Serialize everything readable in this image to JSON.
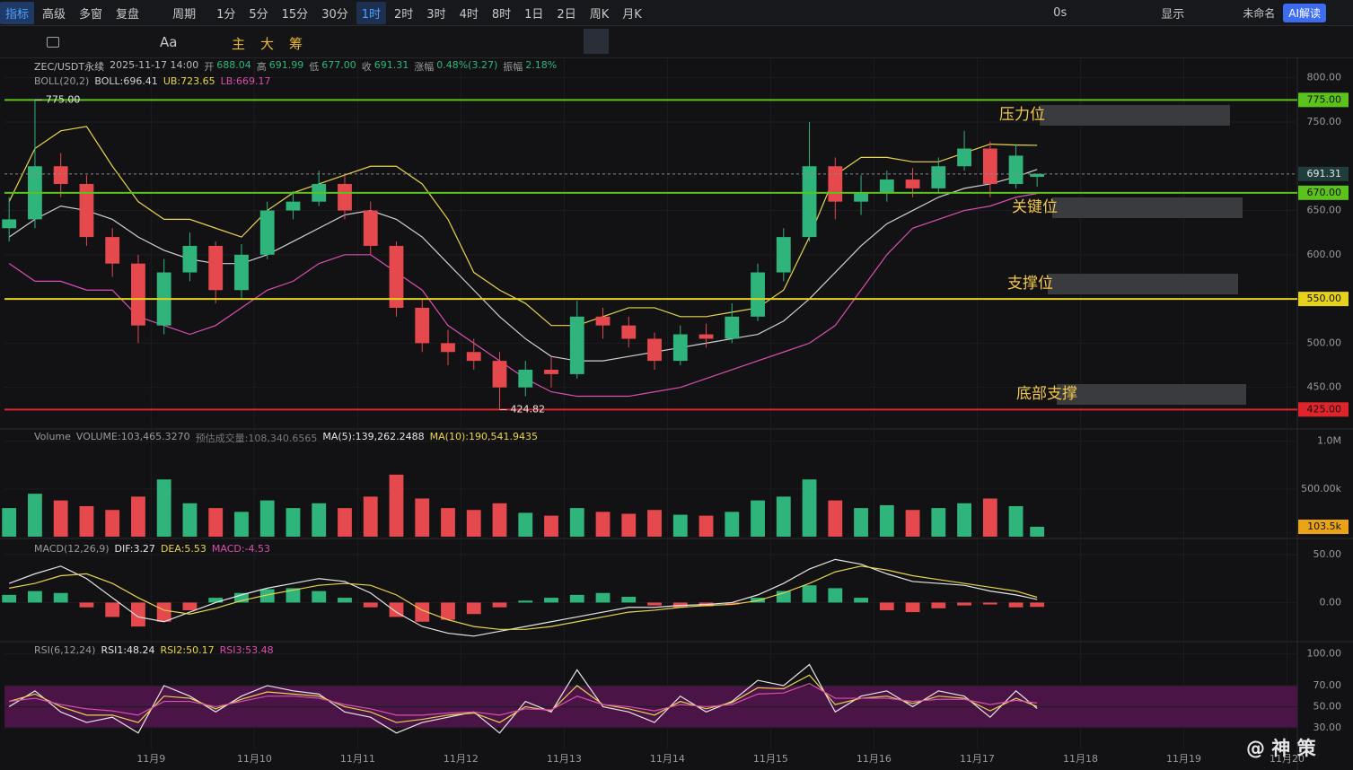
{
  "toolbar": {
    "items": [
      "指标",
      "高级",
      "多窗",
      "复盘",
      "周期",
      "1分",
      "5分",
      "15分",
      "30分",
      "1时",
      "2时",
      "3时",
      "4时",
      "8时",
      "1日",
      "2日",
      "周K",
      "月K"
    ],
    "right": [
      "0s",
      "显示",
      "未命名",
      "AI解读"
    ]
  },
  "drawing_tools": [
    "Aa",
    "主",
    "大",
    "筹"
  ],
  "watermark": "@ 神 策",
  "chart_data": [
    {
      "type": "candlestick",
      "title": "ZEC/USDT永续",
      "subtitle": "2025-11-17 14:00",
      "stats": [
        {
          "label": "开",
          "value": "688.04"
        },
        {
          "label": "高",
          "value": "691.99"
        },
        {
          "label": "低",
          "value": "677.00"
        },
        {
          "label": "收",
          "value": "691.31"
        },
        {
          "label": "涨幅",
          "value": "0.48%(3.27)"
        },
        {
          "label": "振幅",
          "value": "2.18%"
        }
      ],
      "legend": [
        {
          "text": "BOLL(20,2)",
          "color": "#9a9a9a"
        },
        {
          "text": "BOLL:696.41",
          "color": "#d0d0d0"
        },
        {
          "text": "UB:723.65",
          "color": "#e8d44d"
        },
        {
          "text": "LB:669.17",
          "color": "#d94fb0"
        }
      ],
      "x": [
        7.625,
        7.875,
        8.125,
        8.375,
        8.625,
        8.875,
        9.125,
        9.375,
        9.625,
        9.875,
        10.125,
        10.375,
        10.625,
        10.875,
        11.125,
        11.375,
        11.625,
        11.875,
        12.125,
        12.375,
        12.625,
        12.875,
        13.125,
        13.375,
        13.625,
        13.875,
        14.125,
        14.375,
        14.625,
        14.875,
        15.125,
        15.375,
        15.625,
        15.875,
        16.125,
        16.375,
        16.625,
        16.875,
        17.125,
        17.375,
        17.58
      ],
      "open": [
        630,
        640,
        700,
        680,
        620,
        590,
        520,
        580,
        610,
        560,
        600,
        650,
        660,
        680,
        650,
        610,
        540,
        500,
        490,
        480,
        450,
        470,
        465,
        530,
        520,
        505,
        480,
        510,
        505,
        530,
        580,
        620,
        700,
        660,
        670,
        685,
        675,
        700,
        720,
        680,
        688.04
      ],
      "high": [
        665,
        775,
        715,
        690,
        630,
        600,
        595,
        625,
        615,
        612,
        660,
        672,
        695,
        690,
        660,
        615,
        550,
        515,
        505,
        490,
        480,
        485,
        548,
        540,
        530,
        512,
        520,
        522,
        545,
        590,
        630,
        750,
        710,
        690,
        695,
        698,
        710,
        740,
        728,
        725,
        691.99
      ],
      "low": [
        615,
        630,
        665,
        610,
        575,
        500,
        510,
        570,
        545,
        550,
        595,
        640,
        655,
        640,
        600,
        530,
        490,
        475,
        470,
        424.82,
        440,
        450,
        460,
        505,
        495,
        470,
        475,
        495,
        500,
        525,
        570,
        615,
        640,
        645,
        660,
        665,
        670,
        695,
        665,
        675,
        677.0
      ],
      "close": [
        640,
        700,
        680,
        620,
        590,
        520,
        580,
        610,
        560,
        600,
        650,
        660,
        680,
        650,
        610,
        540,
        500,
        490,
        480,
        450,
        470,
        465,
        530,
        520,
        505,
        480,
        510,
        505,
        530,
        580,
        620,
        700,
        660,
        670,
        685,
        675,
        700,
        720,
        680,
        712,
        691.31
      ],
      "up_color": "#2fb47c",
      "down_color": "#e5484d",
      "bands": [
        {
          "name": "BOLL",
          "color": "#d0d0d0",
          "values": [
            620,
            640,
            655,
            650,
            640,
            620,
            605,
            595,
            590,
            590,
            600,
            615,
            630,
            645,
            650,
            640,
            620,
            590,
            560,
            530,
            505,
            485,
            480,
            480,
            485,
            490,
            495,
            500,
            505,
            510,
            525,
            550,
            580,
            610,
            635,
            650,
            665,
            675,
            680,
            688,
            696.41
          ]
        },
        {
          "name": "UB",
          "color": "#e8d44d",
          "values": [
            660,
            720,
            740,
            745,
            700,
            660,
            640,
            640,
            630,
            620,
            650,
            670,
            680,
            690,
            700,
            700,
            680,
            640,
            580,
            560,
            545,
            520,
            520,
            530,
            540,
            540,
            530,
            530,
            535,
            540,
            560,
            620,
            690,
            710,
            710,
            705,
            705,
            715,
            725,
            724,
            723.65
          ]
        },
        {
          "name": "LB",
          "color": "#d94fb0",
          "values": [
            590,
            570,
            570,
            560,
            560,
            530,
            520,
            510,
            520,
            540,
            560,
            570,
            590,
            600,
            600,
            580,
            560,
            520,
            500,
            480,
            460,
            445,
            440,
            440,
            440,
            445,
            450,
            460,
            470,
            480,
            490,
            500,
            520,
            560,
            600,
            630,
            640,
            650,
            655,
            665,
            669.17
          ]
        }
      ],
      "levels": [
        {
          "value": 775,
          "label": "775.00",
          "color": "#5cc21c"
        },
        {
          "value": 670,
          "label": "670.00",
          "color": "#5cc21c"
        },
        {
          "value": 550,
          "label": "550.00",
          "color": "#e6d21a"
        },
        {
          "value": 425,
          "label": "425.00",
          "color": "#e0242c"
        }
      ],
      "last": {
        "value": 691.31,
        "label": "691.31"
      },
      "extreme_labels": [
        "775.00",
        "424.82"
      ],
      "annotations": [
        "压力位",
        "关键位",
        "支撑位",
        "底部支撑"
      ],
      "xlim": [
        7.58,
        20.1
      ],
      "ylim": [
        403,
        822
      ],
      "yticks": [
        {
          "value": 800,
          "label": "800.00"
        },
        {
          "value": 750,
          "label": "750.00"
        },
        {
          "value": 650,
          "label": "650.00"
        },
        {
          "value": 600,
          "label": "600.00"
        },
        {
          "value": 500,
          "label": "500.00"
        },
        {
          "value": 450,
          "label": "450.00"
        }
      ],
      "xticks": [
        {
          "value": 9,
          "label": "11月9"
        },
        {
          "value": 10,
          "label": "11月10"
        },
        {
          "value": 11,
          "label": "11月11"
        },
        {
          "value": 12,
          "label": "11月12"
        },
        {
          "value": 13,
          "label": "11月13"
        },
        {
          "value": 14,
          "label": "11月14"
        },
        {
          "value": 15,
          "label": "11月15"
        },
        {
          "value": 16,
          "label": "11月16"
        },
        {
          "value": 17,
          "label": "11月17"
        },
        {
          "value": 18,
          "label": "11月18"
        },
        {
          "value": 19,
          "label": "11月19"
        },
        {
          "value": 20,
          "label": "11月20"
        }
      ]
    },
    {
      "type": "bar",
      "legend": [
        {
          "text": "Volume",
          "color": "#9a9a9a"
        },
        {
          "text": "VOLUME:103,465.3270",
          "color": "#9a9a9a"
        },
        {
          "text": "预估成交量:108,340.6565",
          "color": "#777"
        },
        {
          "text": "MA(5):139,262.2488",
          "color": "#e6e6e6"
        },
        {
          "text": "MA(10):190,541.9435",
          "color": "#e8d44d"
        }
      ],
      "values": [
        300000,
        450000,
        380000,
        320000,
        280000,
        420000,
        600000,
        350000,
        300000,
        260000,
        380000,
        300000,
        350000,
        300000,
        420000,
        650000,
        400000,
        300000,
        280000,
        350000,
        250000,
        220000,
        300000,
        260000,
        240000,
        280000,
        230000,
        220000,
        260000,
        380000,
        420000,
        600000,
        380000,
        300000,
        330000,
        280000,
        300000,
        350000,
        400000,
        320000,
        103465.327
      ],
      "last_label": "103.5k",
      "last_color": "#e8a317",
      "ylim": [
        0,
        1110000
      ],
      "yticks": [
        {
          "value": 1000000,
          "label": "1.0M"
        },
        {
          "value": 500000,
          "label": "500.00k"
        }
      ]
    },
    {
      "type": "combo",
      "legend": [
        {
          "text": "MACD(12,26,9)",
          "color": "#9a9a9a"
        },
        {
          "text": "DIF:3.27",
          "color": "#e6e6e6"
        },
        {
          "text": "DEA:5.53",
          "color": "#e8d44d"
        },
        {
          "text": "MACD:-4.53",
          "color": "#d94fb0"
        }
      ],
      "series": [
        {
          "name": "MACD",
          "kind": "bar",
          "values": [
            8,
            12,
            10,
            -5,
            -15,
            -25,
            -20,
            -8,
            5,
            10,
            14,
            15,
            12,
            5,
            -5,
            -15,
            -20,
            -18,
            -12,
            -5,
            2,
            5,
            8,
            10,
            6,
            -3,
            -5,
            -4,
            -2,
            5,
            12,
            18,
            15,
            5,
            -8,
            -10,
            -6,
            -3,
            -2,
            -5,
            -4.53
          ]
        },
        {
          "name": "DIF",
          "kind": "line",
          "color": "#e6e6e6",
          "values": [
            20,
            30,
            38,
            25,
            5,
            -15,
            -20,
            -10,
            0,
            8,
            15,
            20,
            25,
            22,
            10,
            -10,
            -25,
            -32,
            -35,
            -30,
            -25,
            -20,
            -15,
            -10,
            -5,
            -5,
            -3,
            -2,
            0,
            8,
            20,
            35,
            45,
            40,
            30,
            22,
            20,
            18,
            12,
            8,
            3.27
          ]
        },
        {
          "name": "DEA",
          "kind": "line",
          "color": "#e8d44d",
          "values": [
            15,
            20,
            28,
            30,
            20,
            5,
            -8,
            -12,
            -6,
            2,
            8,
            13,
            18,
            20,
            18,
            8,
            -8,
            -18,
            -25,
            -28,
            -28,
            -25,
            -20,
            -15,
            -10,
            -8,
            -5,
            -3,
            -2,
            2,
            10,
            20,
            32,
            38,
            34,
            28,
            24,
            20,
            16,
            12,
            5.53
          ]
        }
      ],
      "ylim": [
        -38,
        65
      ],
      "yticks": [
        {
          "value": 50,
          "label": "50.00"
        },
        {
          "value": 0,
          "label": "0.00"
        }
      ]
    },
    {
      "type": "line",
      "legend": [
        {
          "text": "RSI(6,12,24)",
          "color": "#9a9a9a"
        },
        {
          "text": "RSI1:48.24",
          "color": "#e6e6e6"
        },
        {
          "text": "RSI2:50.17",
          "color": "#e8d44d"
        },
        {
          "text": "RSI3:53.48",
          "color": "#d94fb0"
        }
      ],
      "series": [
        {
          "name": "RSI1",
          "color": "#e6e6e6",
          "values": [
            50,
            65,
            45,
            35,
            40,
            25,
            70,
            60,
            45,
            60,
            70,
            65,
            62,
            45,
            40,
            25,
            35,
            40,
            45,
            25,
            55,
            45,
            85,
            50,
            45,
            35,
            60,
            45,
            55,
            75,
            70,
            90,
            45,
            60,
            65,
            50,
            65,
            60,
            40,
            65,
            48.24
          ]
        },
        {
          "name": "RSI2",
          "color": "#e8d44d",
          "values": [
            55,
            62,
            50,
            42,
            42,
            35,
            60,
            58,
            48,
            57,
            64,
            62,
            60,
            50,
            45,
            35,
            38,
            42,
            44,
            35,
            50,
            46,
            70,
            52,
            48,
            42,
            55,
            48,
            54,
            68,
            67,
            80,
            52,
            58,
            60,
            53,
            60,
            58,
            46,
            58,
            50.17
          ]
        },
        {
          "name": "RSI3",
          "color": "#d94fb0",
          "values": [
            55,
            58,
            52,
            48,
            46,
            42,
            55,
            55,
            50,
            55,
            60,
            60,
            58,
            52,
            48,
            42,
            42,
            44,
            45,
            42,
            48,
            47,
            60,
            52,
            50,
            46,
            52,
            50,
            52,
            62,
            63,
            72,
            58,
            58,
            58,
            55,
            57,
            57,
            52,
            56,
            53.48
          ]
        }
      ],
      "band": {
        "from": 30,
        "to": 70,
        "color": "#4a1446"
      },
      "ylim": [
        9.5,
        110
      ],
      "yticks": [
        {
          "value": 100,
          "label": "100.00"
        },
        {
          "value": 70,
          "label": "70.00"
        },
        {
          "value": 50,
          "label": "50.00"
        },
        {
          "value": 30,
          "label": "30.00"
        }
      ]
    }
  ]
}
